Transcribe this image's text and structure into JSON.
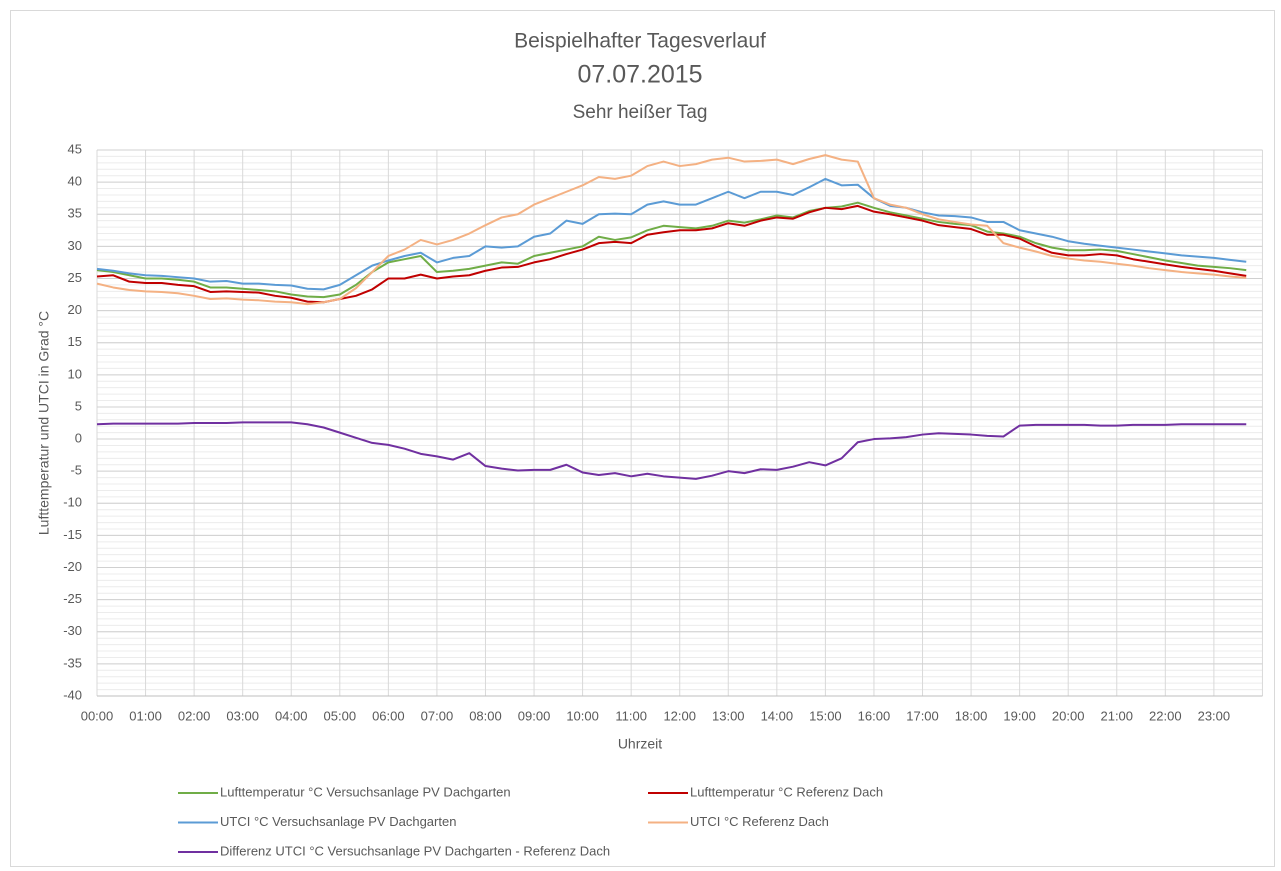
{
  "chart_data": {
    "type": "line",
    "title": [
      "Beispielhafter Tagesverlauf",
      "07.07.2015",
      "Sehr heißer Tag"
    ],
    "x_label": "Uhrzeit",
    "y_label": "Lufttemperatur und UTCI in Grad °C",
    "categories": [
      "00:00",
      null,
      null,
      "01:00",
      null,
      null,
      "02:00",
      null,
      null,
      "03:00",
      null,
      null,
      "04:00",
      null,
      null,
      "05:00",
      null,
      null,
      "06:00",
      null,
      null,
      "07:00",
      null,
      null,
      "08:00",
      null,
      null,
      "09:00",
      null,
      null,
      "10:00",
      null,
      null,
      "11:00",
      null,
      null,
      "12:00",
      null,
      null,
      "13:00",
      null,
      null,
      "14:00",
      null,
      null,
      "15:00",
      null,
      null,
      "16:00",
      null,
      null,
      "17:00",
      null,
      null,
      "18:00",
      null,
      null,
      "19:00",
      null,
      null,
      "20:00",
      null,
      null,
      "21:00",
      null,
      null,
      "22:00",
      null,
      null,
      "23:00",
      null,
      null
    ],
    "ylim": [
      -40,
      45
    ],
    "yticks": [
      -40,
      -35,
      -30,
      -25,
      -20,
      -15,
      -10,
      -5,
      0,
      5,
      10,
      15,
      20,
      25,
      30,
      35,
      40,
      45
    ],
    "grid": true,
    "minor_grid": true,
    "legend": "bottom",
    "series": [
      {
        "name": "Lufttemperatur °C Versuchsanlage PV Dachgarten",
        "color": "#70ad47",
        "values": [
          26.3,
          26,
          25.5,
          25,
          25,
          24.8,
          24.5,
          23.6,
          23.6,
          23.4,
          23.2,
          23,
          22.5,
          22.2,
          22.1,
          22.5,
          24,
          26,
          27.5,
          28,
          28.5,
          26,
          26.2,
          26.5,
          27,
          27.5,
          27.3,
          28.5,
          29,
          29.5,
          30,
          31.5,
          31,
          31.4,
          32.5,
          33.2,
          33,
          32.8,
          33.2,
          34,
          33.7,
          34.2,
          34.8,
          34.5,
          35.5,
          36,
          36.2,
          36.8,
          36,
          35.3,
          34.8,
          34.3,
          33.8,
          33.5,
          33.3,
          32.3,
          32,
          31.5,
          30.5,
          29.8,
          29.4,
          29.4,
          29.5,
          29.3,
          28.8,
          28.3,
          27.8,
          27.4,
          27,
          26.8,
          26.6,
          26.3
        ]
      },
      {
        "name": "Lufttemperatur °C Referenz Dach",
        "color": "#c00000",
        "values": [
          25.3,
          25.5,
          24.5,
          24.3,
          24.3,
          24,
          23.8,
          22.9,
          23,
          22.9,
          22.8,
          22.3,
          22,
          21.4,
          21.3,
          21.8,
          22.3,
          23.3,
          25,
          25,
          25.6,
          25,
          25.3,
          25.5,
          26.2,
          26.7,
          26.8,
          27.5,
          28,
          28.8,
          29.5,
          30.5,
          30.7,
          30.5,
          31.8,
          32.2,
          32.5,
          32.5,
          32.8,
          33.6,
          33.2,
          34,
          34.5,
          34.3,
          35.3,
          36,
          35.8,
          36.3,
          35.4,
          35,
          34.5,
          34,
          33.3,
          33,
          32.7,
          31.8,
          31.8,
          31.2,
          30,
          29,
          28.6,
          28.6,
          28.8,
          28.6,
          28,
          27.6,
          27.2,
          26.8,
          26.5,
          26.2,
          25.8,
          25.4
        ]
      },
      {
        "name": "UTCI °C Versuchsanlage PV Dachgarten",
        "color": "#5b9bd5",
        "values": [
          26.5,
          26.2,
          25.8,
          25.5,
          25.4,
          25.2,
          25,
          24.5,
          24.6,
          24.2,
          24.2,
          24,
          23.9,
          23.4,
          23.3,
          24,
          25.5,
          27,
          27.8,
          28.5,
          29,
          27.5,
          28.2,
          28.5,
          30,
          29.8,
          30,
          31.5,
          32,
          34,
          33.5,
          35,
          35.1,
          35,
          36.5,
          37,
          36.5,
          36.5,
          37.5,
          38.5,
          37.5,
          38.5,
          38.5,
          38,
          39.2,
          40.5,
          39.5,
          39.6,
          37.5,
          36.3,
          36,
          35.3,
          34.8,
          34.7,
          34.5,
          33.8,
          33.8,
          32.5,
          32,
          31.5,
          30.8,
          30.4,
          30.1,
          29.8,
          29.5,
          29.2,
          28.9,
          28.6,
          28.4,
          28.2,
          27.9,
          27.6
        ]
      },
      {
        "name": "UTCI °C Referenz Dach",
        "color": "#f4b183",
        "values": [
          24.2,
          23.6,
          23.2,
          23,
          22.9,
          22.7,
          22.3,
          21.8,
          21.9,
          21.7,
          21.6,
          21.4,
          21.3,
          21,
          21.3,
          21.8,
          23.5,
          26,
          28.5,
          29.5,
          31,
          30.3,
          31,
          32,
          33.3,
          34.5,
          35,
          36.5,
          37.5,
          38.5,
          39.5,
          40.8,
          40.5,
          41,
          42.5,
          43.2,
          42.5,
          42.8,
          43.5,
          43.8,
          43.2,
          43.3,
          43.5,
          42.8,
          43.6,
          44.2,
          43.5,
          43.2,
          37.5,
          36.5,
          36,
          35,
          34.2,
          33.8,
          33.4,
          33.2,
          30.5,
          29.8,
          29.2,
          28.5,
          28.1,
          27.8,
          27.6,
          27.3,
          27,
          26.6,
          26.3,
          26,
          25.8,
          25.6,
          25.3,
          25.1
        ]
      },
      {
        "name": "Differenz UTCI °C Versuchsanlage PV Dachgarten - Referenz Dach",
        "color": "#7030a0",
        "values": [
          2.3,
          2.4,
          2.4,
          2.4,
          2.4,
          2.4,
          2.5,
          2.5,
          2.5,
          2.6,
          2.6,
          2.6,
          2.6,
          2.3,
          1.8,
          1,
          0.2,
          -0.6,
          -0.9,
          -1.5,
          -2.3,
          -2.7,
          -3.2,
          -2.2,
          -4.2,
          -4.6,
          -4.9,
          -4.8,
          -4.8,
          -4,
          -5.2,
          -5.6,
          -5.3,
          -5.8,
          -5.4,
          -5.8,
          -6,
          -6.2,
          -5.7,
          -5,
          -5.3,
          -4.7,
          -4.8,
          -4.3,
          -3.6,
          -4.1,
          -3,
          -0.5,
          0,
          0.1,
          0.3,
          0.7,
          0.9,
          0.8,
          0.7,
          0.5,
          0.4,
          2.1,
          2.2,
          2.2,
          2.2,
          2.2,
          2.1,
          2.1,
          2.2,
          2.2,
          2.2,
          2.3,
          2.3,
          2.3,
          2.3,
          2.3
        ]
      }
    ]
  }
}
